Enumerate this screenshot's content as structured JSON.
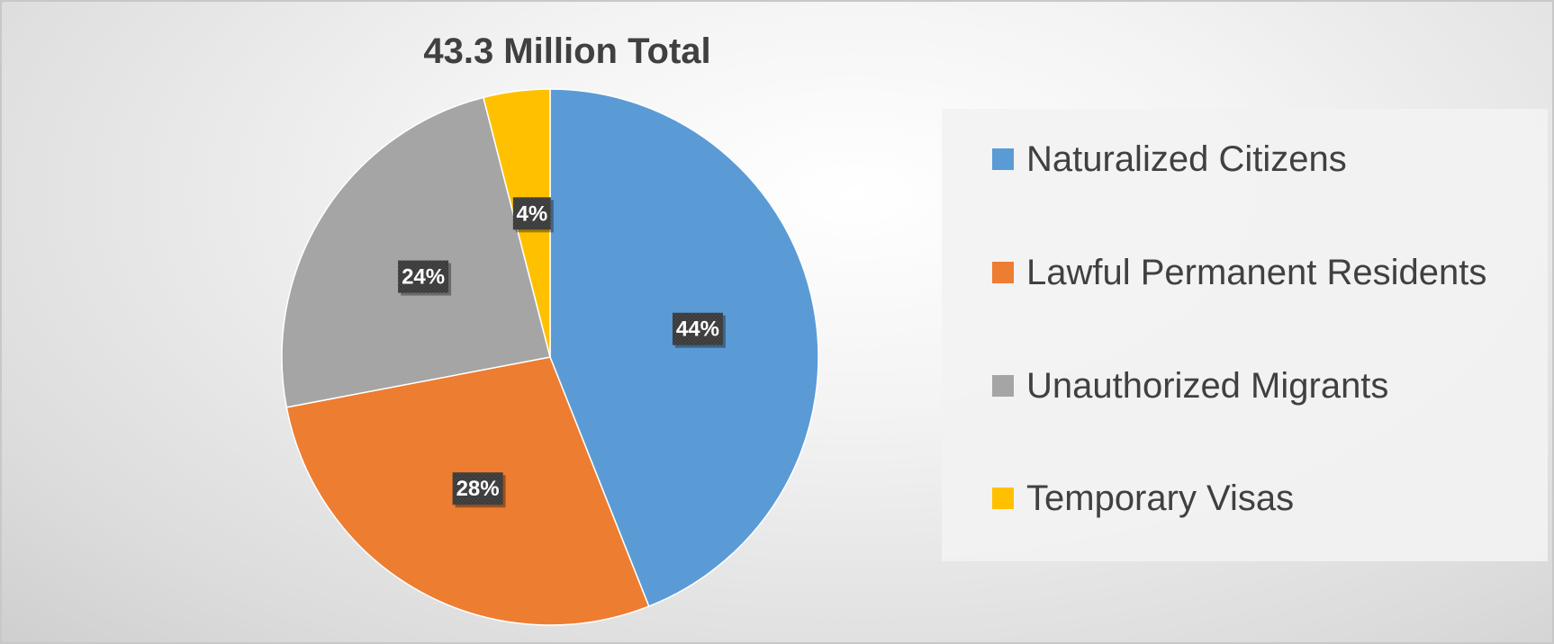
{
  "chart_data": {
    "type": "pie",
    "title": "43.3 Million Total",
    "categories": [
      "Naturalized Citizens",
      "Lawful Permanent Residents",
      "Unauthorized Migrants",
      "Temporary Visas"
    ],
    "values": [
      44,
      28,
      24,
      4
    ],
    "data_labels": [
      "44%",
      "28%",
      "24%",
      "4%"
    ],
    "colors": [
      "#5B9BD5",
      "#ED7D31",
      "#A5A5A5",
      "#FFC000"
    ],
    "legend_position": "right",
    "start_angle": "12 o'clock",
    "direction": "clockwise"
  },
  "legend": {
    "items": [
      {
        "label": "Naturalized Citizens",
        "color": "#5B9BD5"
      },
      {
        "label": "Lawful Permanent Residents",
        "color": "#ED7D31"
      },
      {
        "label": "Unauthorized Migrants",
        "color": "#A5A5A5"
      },
      {
        "label": "Temporary Visas",
        "color": "#FFC000"
      }
    ]
  }
}
